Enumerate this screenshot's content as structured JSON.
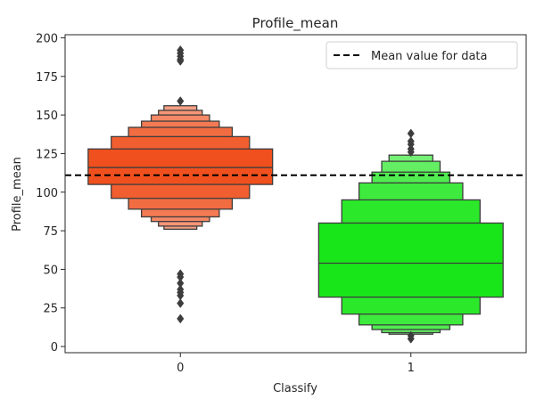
{
  "chart_data": {
    "type": "boxen",
    "title": "Profile_mean",
    "xlabel": "Classify",
    "ylabel": "Profile_mean",
    "categories": [
      "0",
      "1"
    ],
    "ylim": [
      -4,
      202
    ],
    "yticks": [
      0,
      25,
      50,
      75,
      100,
      125,
      150,
      175,
      200
    ],
    "grid": false,
    "legend": {
      "placement": "top-right",
      "label": "Mean value for data"
    },
    "mean_line": 111,
    "series": [
      {
        "category": "0",
        "color": "#f0501e",
        "median": 116,
        "levels": [
          {
            "low": 105,
            "high": 128
          },
          {
            "low": 96,
            "high": 136
          },
          {
            "low": 89,
            "high": 142
          },
          {
            "low": 84,
            "high": 146
          },
          {
            "low": 81,
            "high": 150
          },
          {
            "low": 78,
            "high": 153
          },
          {
            "low": 76,
            "high": 156
          }
        ],
        "outliers": [
          18,
          28,
          33,
          35,
          37,
          41,
          45,
          47,
          159,
          185,
          186,
          188,
          190,
          192
        ]
      },
      {
        "category": "1",
        "color": "#19e619",
        "median": 54,
        "levels": [
          {
            "low": 32,
            "high": 80
          },
          {
            "low": 21,
            "high": 95
          },
          {
            "low": 14,
            "high": 106
          },
          {
            "low": 11,
            "high": 113
          },
          {
            "low": 9,
            "high": 120
          },
          {
            "low": 8,
            "high": 124
          }
        ],
        "outliers": [
          5,
          7,
          126,
          128,
          131,
          133,
          138
        ]
      }
    ]
  }
}
